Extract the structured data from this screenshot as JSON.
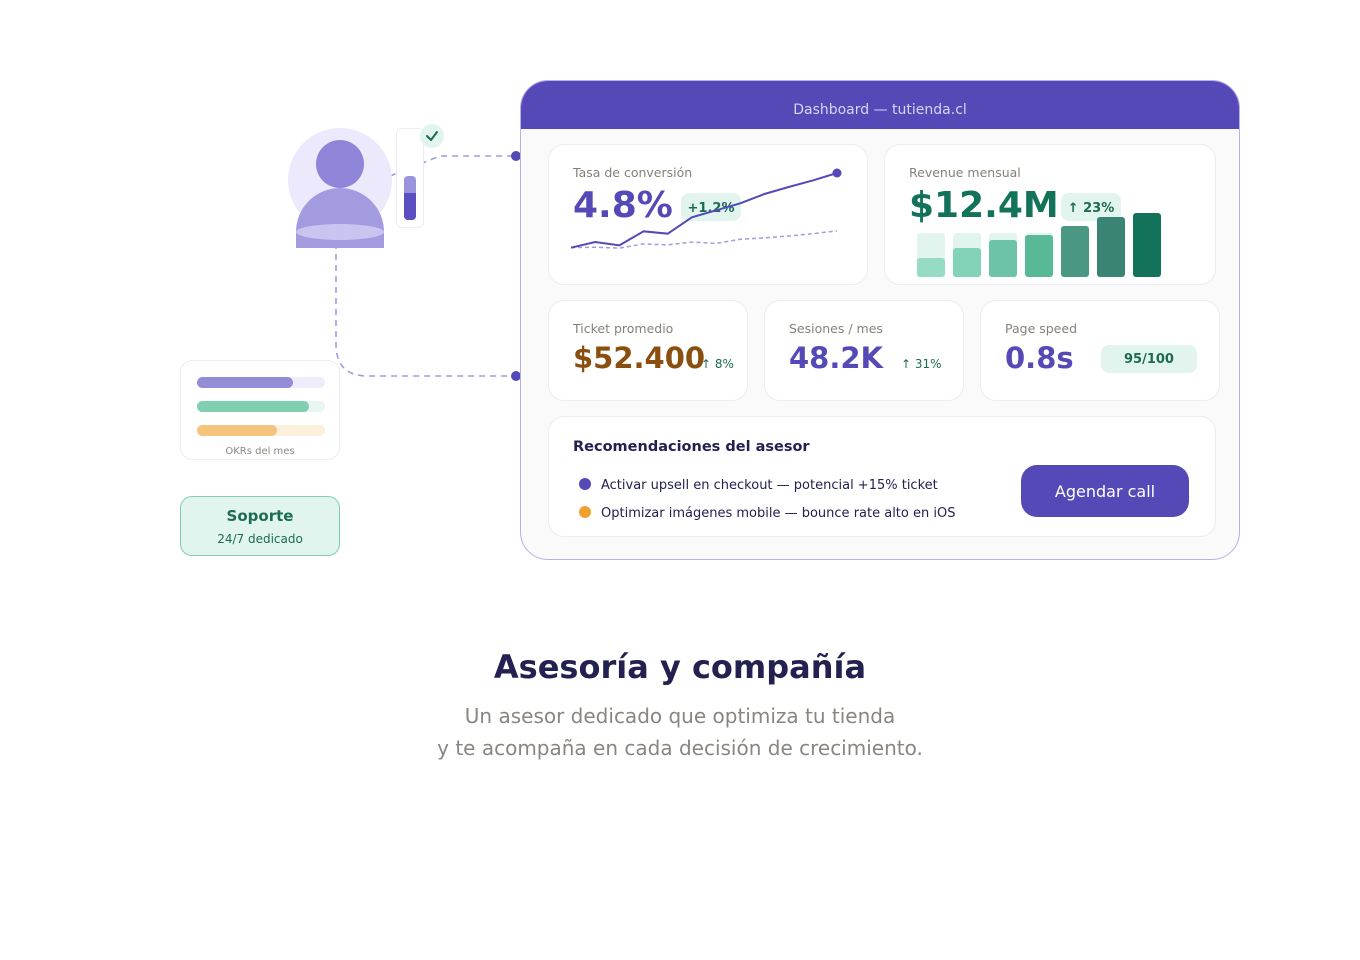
{
  "dashboard": {
    "title": "Dashboard — tutienda.cl",
    "conversion": {
      "label": "Tasa de conversión",
      "value": "4.8%",
      "delta": "+1.2%",
      "trend": [
        2,
        3.2,
        2.5,
        5.5,
        5,
        8.5,
        10,
        11.5,
        13.5,
        15,
        16.4,
        18
      ],
      "baseline": [
        2,
        2.1,
        1.9,
        2.8,
        2.6,
        3.2,
        2.9,
        3.8,
        4.1,
        4.5,
        5,
        5.6
      ],
      "accent_color": "#5549b8"
    },
    "revenue": {
      "label": "Revenue mensual",
      "value": "$12.4M",
      "delta": "↑ 23%",
      "bars": [
        0.3,
        0.45,
        0.58,
        0.65,
        0.8,
        0.93,
        1.0
      ],
      "bar_colors": [
        "#96dcc4",
        "#82d3b8",
        "#6cc3a7",
        "#58b996",
        "#4a9784",
        "#398473",
        "#12725a"
      ],
      "accent_color": "#12725a"
    },
    "ticket": {
      "label": "Ticket promedio",
      "value": "$52.400",
      "delta": "↑ 8%",
      "accent_color": "#8a4f0e"
    },
    "sessions": {
      "label": "Sesiones / mes",
      "value": "48.2K",
      "delta": "↑ 31%"
    },
    "page_speed": {
      "label": "Page speed",
      "value": "0.8s",
      "score": "95/100"
    },
    "recommendations": {
      "title": "Recomendaciones del asesor",
      "items": [
        {
          "text": "Activar upsell en checkout — potencial +15% ticket",
          "color": "#5549b8"
        },
        {
          "text": "Optimizar imágenes mobile — bounce rate alto en iOS",
          "color": "#f0a02c"
        }
      ],
      "cta_label": "Agendar call"
    }
  },
  "advisor": {
    "status_icon": "check-icon",
    "progress": 0.62
  },
  "okrs": {
    "label": "OKRs del mes",
    "items": [
      {
        "progress": 0.75,
        "color": "#938cd6",
        "track": "#efedfb"
      },
      {
        "progress": 0.875,
        "color": "#7fcfb0",
        "track": "#e7f6f0"
      },
      {
        "progress": 0.625,
        "color": "#f4c47c",
        "track": "#fcefdc"
      }
    ]
  },
  "support": {
    "title": "Soporte",
    "subtitle": "24/7 dedicado"
  },
  "hero": {
    "title": "Asesoría y compañía",
    "subtitle_line1": "Un asesor dedicado que optimiza tu tienda",
    "subtitle_line2": "y te acompaña en cada decisión de crecimiento."
  }
}
